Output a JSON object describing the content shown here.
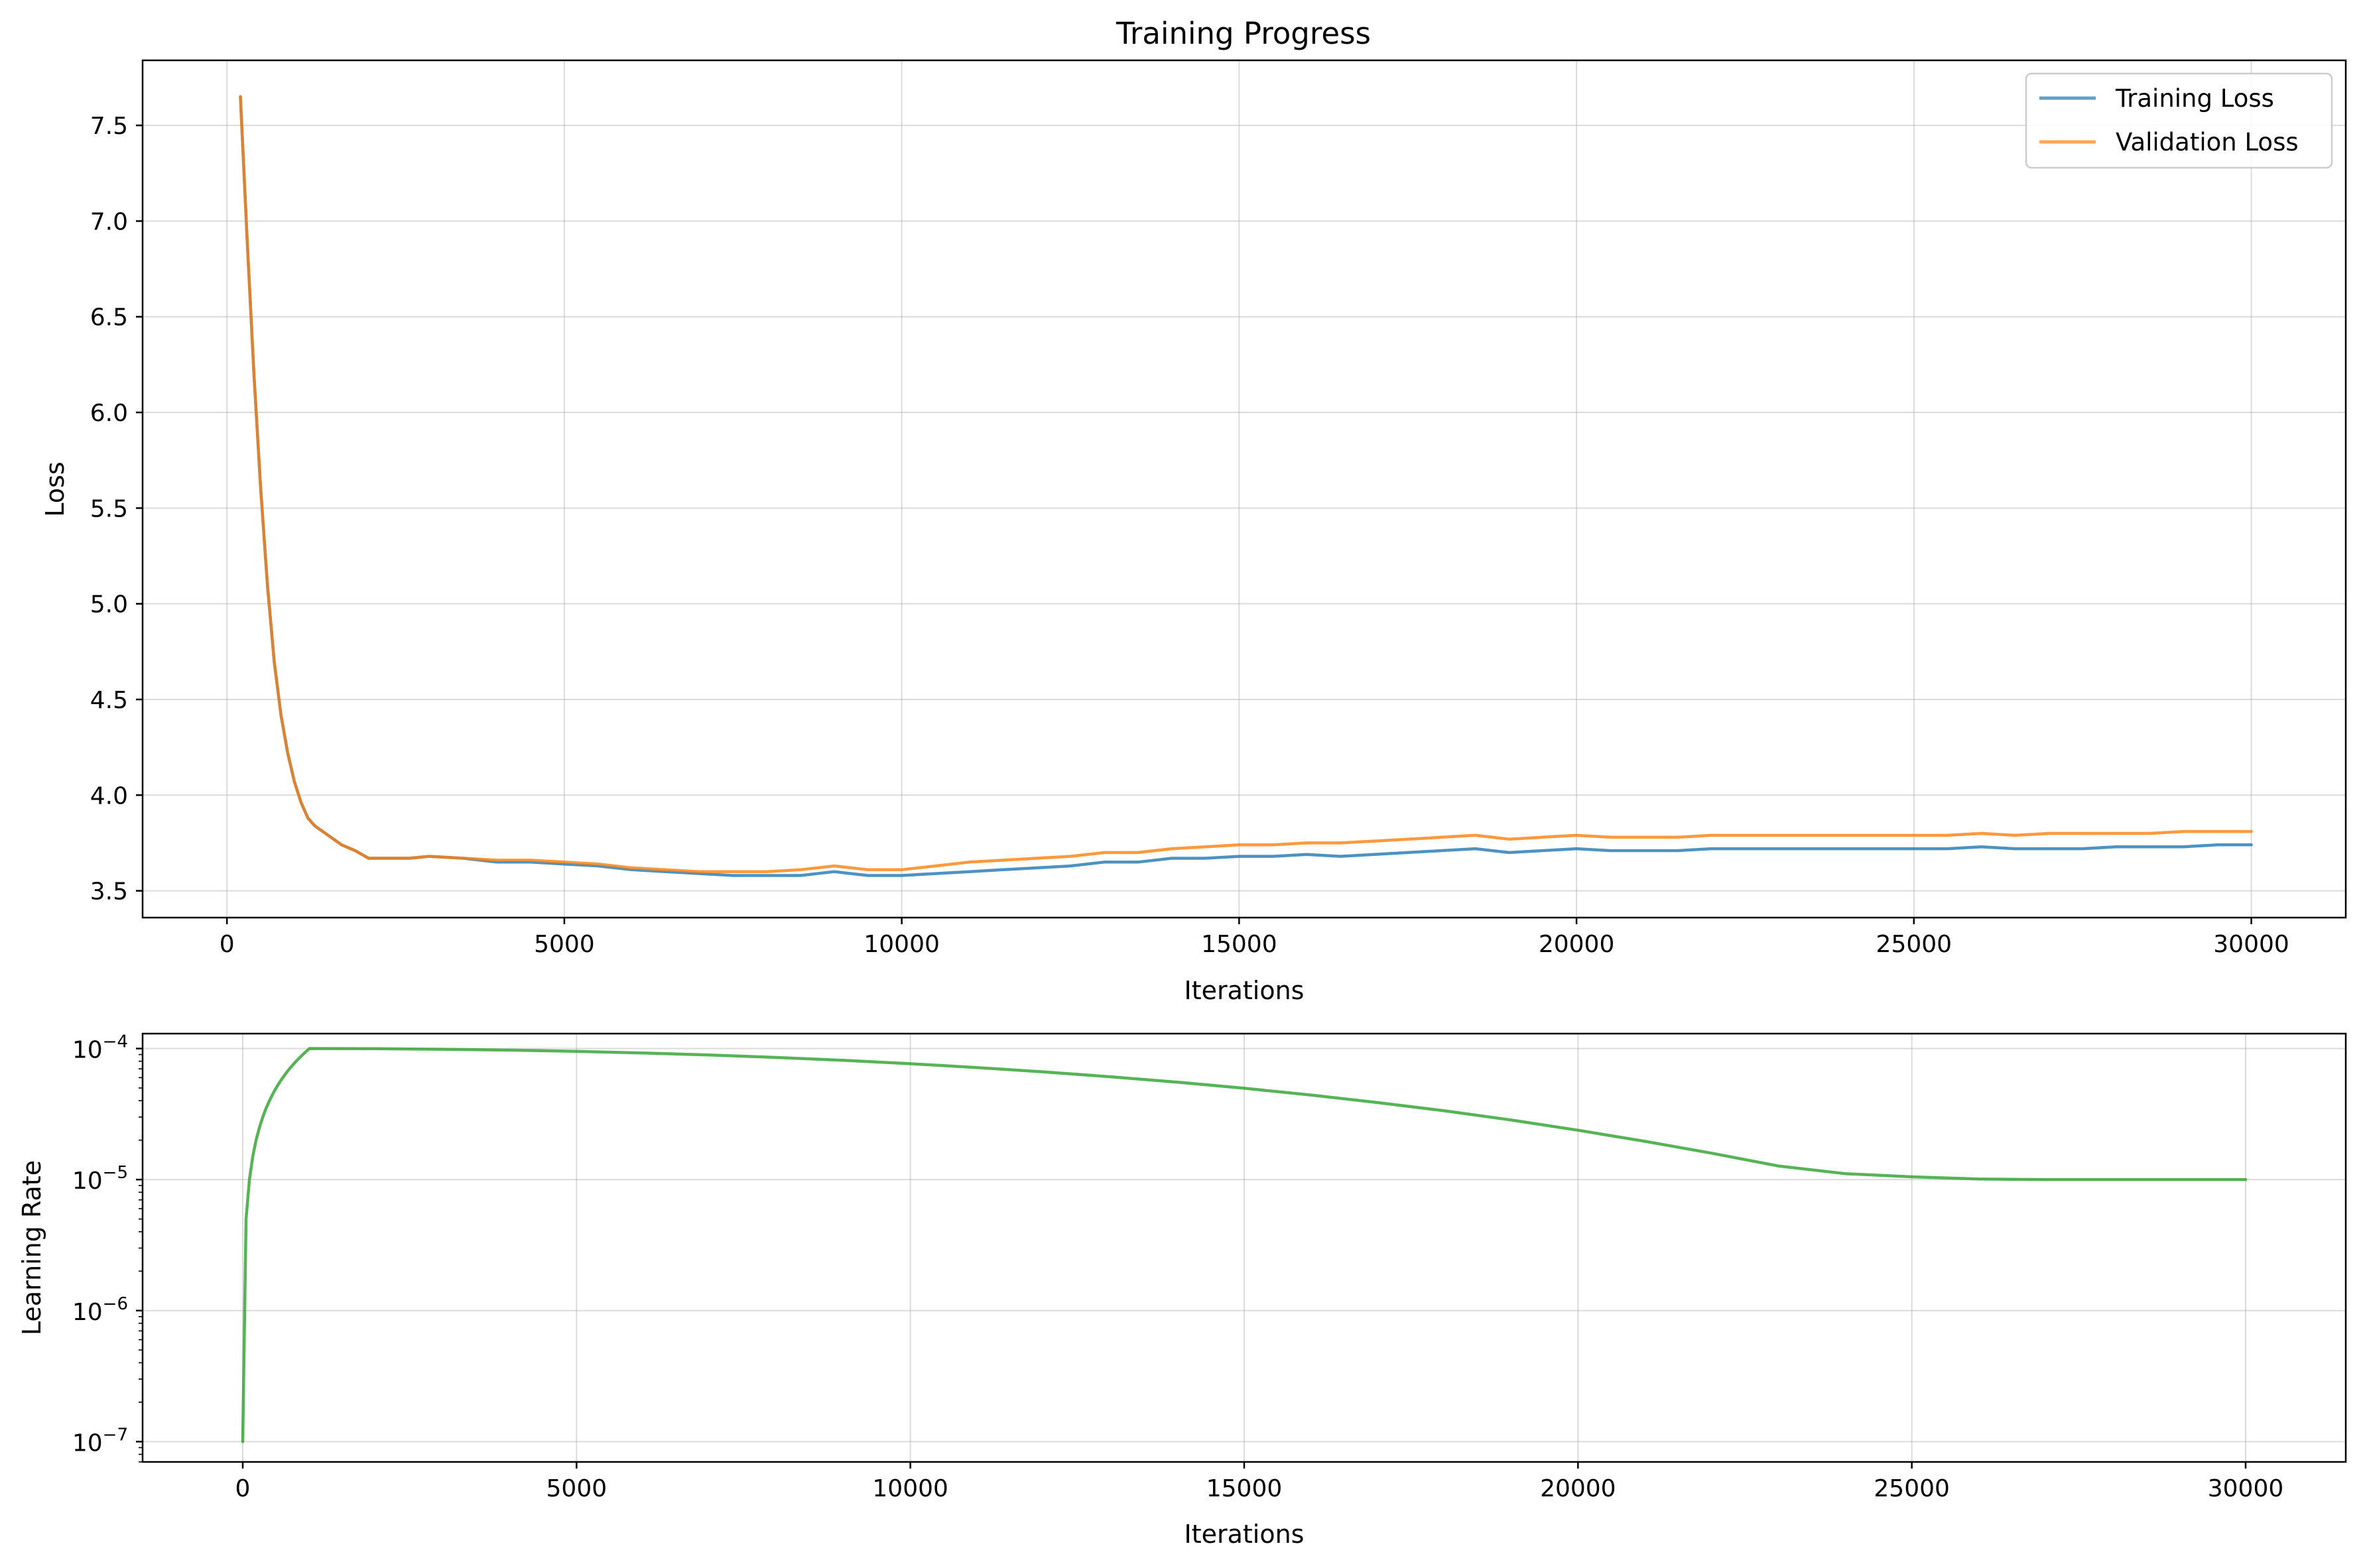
{
  "chart_data": [
    {
      "type": "line",
      "title": "Training Progress",
      "xlabel": "Iterations",
      "ylabel": "Loss",
      "xlim": [
        -1250,
        31400
      ],
      "ylim": [
        3.36,
        7.84
      ],
      "xticks": [
        0,
        5000,
        10000,
        15000,
        20000,
        25000,
        30000
      ],
      "xtick_labels": [
        "0",
        "5000",
        "10000",
        "15000",
        "20000",
        "25000",
        "30000"
      ],
      "yticks": [
        3.5,
        4.0,
        4.5,
        5.0,
        5.5,
        6.0,
        6.5,
        7.0,
        7.5
      ],
      "ytick_labels": [
        "3.5",
        "4.0",
        "4.5",
        "5.0",
        "5.5",
        "6.0",
        "6.5",
        "7.0",
        "7.5"
      ],
      "grid": true,
      "legend_position": "top-right",
      "series": [
        {
          "name": "Training Loss",
          "color": "#1f77b4",
          "x": [
            200,
            300,
            400,
            500,
            600,
            700,
            800,
            900,
            1000,
            1100,
            1200,
            1300,
            1500,
            1700,
            1900,
            2100,
            2400,
            2700,
            3000,
            3500,
            4000,
            4500,
            5000,
            5500,
            6000,
            6500,
            7000,
            7500,
            8000,
            8500,
            9000,
            9500,
            10000,
            10500,
            11000,
            11500,
            12000,
            12500,
            13000,
            13500,
            14000,
            14500,
            15000,
            15500,
            16000,
            16500,
            17000,
            17500,
            18000,
            18500,
            19000,
            19500,
            20000,
            20500,
            21000,
            21500,
            22000,
            22500,
            23000,
            23500,
            24000,
            24500,
            25000,
            25500,
            26000,
            26500,
            27000,
            27500,
            28000,
            28500,
            29000,
            29500,
            30000
          ],
          "y": [
            7.65,
            6.9,
            6.2,
            5.6,
            5.1,
            4.7,
            4.42,
            4.22,
            4.07,
            3.96,
            3.88,
            3.84,
            3.79,
            3.74,
            3.71,
            3.67,
            3.67,
            3.67,
            3.68,
            3.67,
            3.65,
            3.65,
            3.64,
            3.63,
            3.61,
            3.6,
            3.59,
            3.58,
            3.58,
            3.58,
            3.6,
            3.58,
            3.58,
            3.59,
            3.6,
            3.61,
            3.62,
            3.63,
            3.65,
            3.65,
            3.67,
            3.67,
            3.68,
            3.68,
            3.69,
            3.68,
            3.69,
            3.7,
            3.71,
            3.72,
            3.7,
            3.71,
            3.72,
            3.71,
            3.71,
            3.71,
            3.72,
            3.72,
            3.72,
            3.72,
            3.72,
            3.72,
            3.72,
            3.72,
            3.73,
            3.72,
            3.72,
            3.72,
            3.73,
            3.73,
            3.73,
            3.74,
            3.74
          ]
        },
        {
          "name": "Validation Loss",
          "color": "#ff7f0e",
          "x": [
            200,
            300,
            400,
            500,
            600,
            700,
            800,
            900,
            1000,
            1100,
            1200,
            1300,
            1500,
            1700,
            1900,
            2100,
            2400,
            2700,
            3000,
            3500,
            4000,
            4500,
            5000,
            5500,
            6000,
            6500,
            7000,
            7500,
            8000,
            8500,
            9000,
            9500,
            10000,
            10500,
            11000,
            11500,
            12000,
            12500,
            13000,
            13500,
            14000,
            14500,
            15000,
            15500,
            16000,
            16500,
            17000,
            17500,
            18000,
            18500,
            19000,
            19500,
            20000,
            20500,
            21000,
            21500,
            22000,
            22500,
            23000,
            23500,
            24000,
            24500,
            25000,
            25500,
            26000,
            26500,
            27000,
            27500,
            28000,
            28500,
            29000,
            29500,
            30000
          ],
          "y": [
            7.65,
            6.9,
            6.2,
            5.6,
            5.1,
            4.7,
            4.42,
            4.22,
            4.07,
            3.96,
            3.88,
            3.84,
            3.79,
            3.74,
            3.71,
            3.67,
            3.67,
            3.67,
            3.68,
            3.67,
            3.66,
            3.66,
            3.65,
            3.64,
            3.62,
            3.61,
            3.6,
            3.6,
            3.6,
            3.61,
            3.63,
            3.61,
            3.61,
            3.63,
            3.65,
            3.66,
            3.67,
            3.68,
            3.7,
            3.7,
            3.72,
            3.73,
            3.74,
            3.74,
            3.75,
            3.75,
            3.76,
            3.77,
            3.78,
            3.79,
            3.77,
            3.78,
            3.79,
            3.78,
            3.78,
            3.78,
            3.79,
            3.79,
            3.79,
            3.79,
            3.79,
            3.79,
            3.79,
            3.79,
            3.8,
            3.79,
            3.8,
            3.8,
            3.8,
            3.8,
            3.81,
            3.81,
            3.81
          ]
        }
      ]
    },
    {
      "type": "line",
      "title": "",
      "xlabel": "Iterations",
      "ylabel": "Learning Rate",
      "y_scale": "log",
      "xlim": [
        -1500,
        31500
      ],
      "ylim": [
        7e-08,
        0.00013
      ],
      "xticks": [
        0,
        5000,
        10000,
        15000,
        20000,
        25000,
        30000
      ],
      "xtick_labels": [
        "0",
        "5000",
        "10000",
        "15000",
        "20000",
        "25000",
        "30000"
      ],
      "yticks": [
        1e-07,
        1e-06,
        1e-05,
        0.0001
      ],
      "ytick_labels": [
        {
          "base": "10",
          "exp": "−7"
        },
        {
          "base": "10",
          "exp": "−6"
        },
        {
          "base": "10",
          "exp": "−5"
        },
        {
          "base": "10",
          "exp": "−4"
        }
      ],
      "grid": true,
      "series": [
        {
          "color": "#2ca02c",
          "x": [
            0,
            50,
            100,
            150,
            200,
            250,
            300,
            350,
            400,
            450,
            500,
            550,
            600,
            650,
            700,
            750,
            800,
            850,
            900,
            950,
            1000,
            2000,
            3000,
            4000,
            5000,
            6000,
            7000,
            8000,
            9000,
            10000,
            11000,
            12000,
            13000,
            14000,
            15000,
            16000,
            17000,
            18000,
            19000,
            20000,
            21000,
            22000,
            23000,
            24000,
            25000,
            26000,
            27000,
            28000,
            29000,
            30000
          ],
          "y": [
            1e-07,
            5e-06,
            1e-05,
            1.5e-05,
            2e-05,
            2.5e-05,
            3e-05,
            3.5e-05,
            4e-05,
            4.5e-05,
            5e-05,
            5.5e-05,
            6e-05,
            6.5e-05,
            7e-05,
            7.5e-05,
            8e-05,
            8.5e-05,
            9e-05,
            9.5e-05,
            0.0001,
            9.97e-05,
            9.88e-05,
            9.73e-05,
            9.52e-05,
            9.25e-05,
            8.93e-05,
            8.55e-05,
            8.13e-05,
            7.66e-05,
            7.16e-05,
            6.64e-05,
            6.09e-05,
            5.54e-05,
            4.98e-05,
            4.42e-05,
            3.87e-05,
            3.35e-05,
            2.85e-05,
            2.38e-05,
            1.96e-05,
            1.59e-05,
            1.27e-05,
            1.11e-05,
            1.05e-05,
            1.01e-05,
            1e-05,
            1e-05,
            1e-05,
            1e-05
          ]
        }
      ]
    }
  ]
}
